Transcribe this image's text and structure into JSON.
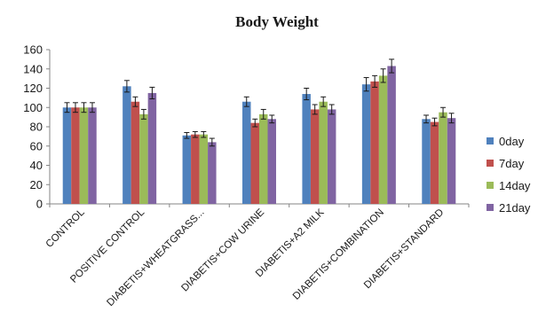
{
  "chart_data": {
    "type": "bar",
    "title": "Body Weight",
    "xlabel": "",
    "ylabel": "",
    "ylim": [
      0,
      160
    ],
    "yticks": [
      0,
      20,
      40,
      60,
      80,
      100,
      120,
      140,
      160
    ],
    "grid": false,
    "legend_position": "right",
    "error_bars": true,
    "categories": [
      "CONTROL",
      "POSITIVE CONTROL",
      "DIABETIS+WHEATGRASS...",
      "DIABETIS+COW URINE",
      "DIABETIS+A2 MILK",
      "DIABETIS+COMBINATION",
      "DIABETIS+STANDARD"
    ],
    "series": [
      {
        "name": "0day",
        "color": "#4f81bd",
        "values": [
          100,
          122,
          71,
          106,
          114,
          124,
          88
        ],
        "errors": [
          5,
          6,
          3,
          5,
          6,
          7,
          4
        ]
      },
      {
        "name": "7day",
        "color": "#c0504d",
        "values": [
          100,
          106,
          72,
          84,
          98,
          127,
          85
        ],
        "errors": [
          5,
          5,
          3,
          4,
          5,
          6,
          4
        ]
      },
      {
        "name": "14day",
        "color": "#9bbb59",
        "values": [
          100,
          93,
          72,
          93,
          106,
          133,
          95
        ],
        "errors": [
          5,
          5,
          3,
          5,
          5,
          7,
          5
        ]
      },
      {
        "name": "21day",
        "color": "#8064a2",
        "values": [
          100,
          115,
          64,
          88,
          98,
          143,
          89
        ],
        "errors": [
          5,
          6,
          4,
          4,
          5,
          7,
          5
        ]
      }
    ]
  }
}
